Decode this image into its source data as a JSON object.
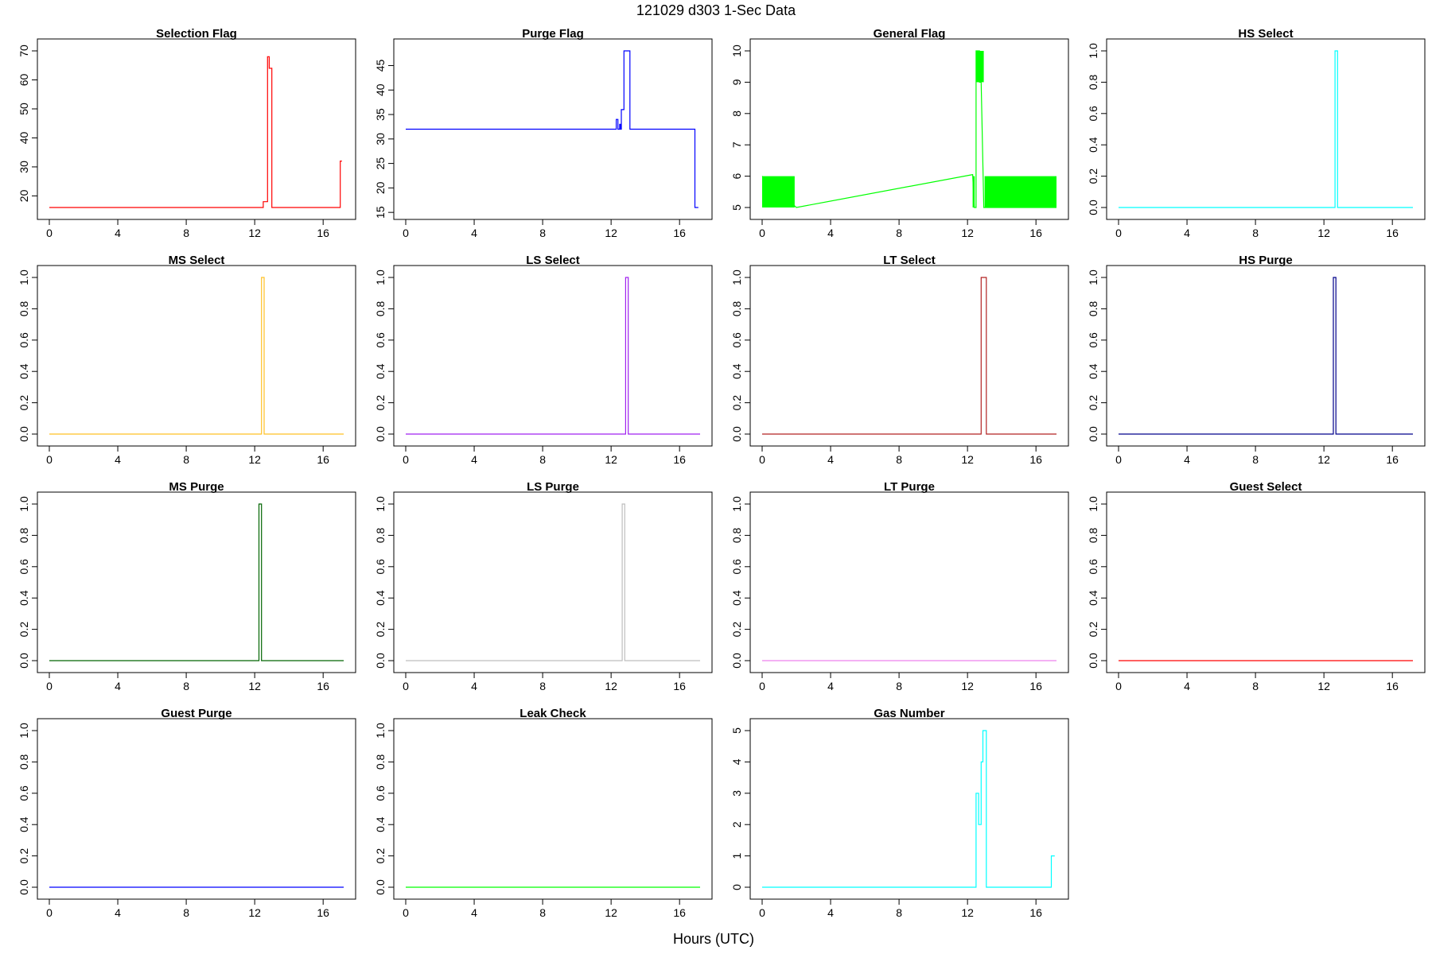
{
  "figure": {
    "title": "121029   d303   1-Sec Data",
    "xlabel": "Hours (UTC)"
  },
  "chart_data": [
    {
      "type": "line",
      "title": "Selection Flag",
      "color": "#FF0000",
      "xlim": [
        0,
        17.2
      ],
      "ylim": [
        16,
        70
      ],
      "xticks": [
        "0",
        "4",
        "8",
        "12",
        "16"
      ],
      "yticks": [
        "20",
        "30",
        "40",
        "50",
        "60",
        "70"
      ],
      "x": [
        0,
        12.5,
        12.5,
        12.75,
        12.75,
        12.85,
        12.85,
        13.0,
        13.0,
        13.1,
        13.1,
        17.0,
        17.0,
        17.1
      ],
      "y": [
        16,
        16,
        18,
        18,
        68,
        68,
        64,
        64,
        16,
        16,
        16,
        16,
        32,
        32
      ]
    },
    {
      "type": "line",
      "title": "Purge Flag",
      "color": "#0000FF",
      "xlim": [
        0,
        17.2
      ],
      "ylim": [
        16,
        48
      ],
      "xticks": [
        "0",
        "4",
        "8",
        "12",
        "16"
      ],
      "yticks": [
        "15",
        "20",
        "25",
        "30",
        "35",
        "40",
        "45"
      ],
      "x": [
        0,
        12.3,
        12.3,
        12.4,
        12.4,
        12.5,
        12.5,
        12.55,
        12.55,
        12.6,
        12.6,
        12.75,
        12.75,
        13.1,
        13.1,
        16.9,
        16.9,
        17.1
      ],
      "y": [
        32,
        32,
        34,
        34,
        32,
        32,
        33,
        33,
        32,
        32,
        36,
        36,
        48,
        48,
        32,
        32,
        16,
        16
      ]
    },
    {
      "type": "line",
      "title": "General Flag",
      "color": "#00FF00",
      "xlim": [
        0,
        17.2
      ],
      "ylim": [
        5,
        10
      ],
      "xticks": [
        "0",
        "4",
        "8",
        "12",
        "16"
      ],
      "yticks": [
        "5",
        "6",
        "7",
        "8",
        "9",
        "10"
      ],
      "x": [
        0,
        2.0,
        12.3,
        12.4,
        12.5,
        12.5,
        12.7,
        12.7,
        12.8,
        12.8,
        12.95,
        13.0,
        17.2
      ],
      "y": [
        6,
        5,
        6.05,
        5,
        5,
        10,
        10,
        9,
        9,
        9,
        5,
        5,
        5
      ],
      "bands": [
        {
          "x0": 0,
          "x1": 1.9,
          "y0": 5,
          "y1": 6
        },
        {
          "x0": 12.3,
          "x1": 12.42,
          "y0": 5,
          "y1": 6
        },
        {
          "x0": 12.5,
          "x1": 12.95,
          "y0": 9,
          "y1": 10
        },
        {
          "x0": 13.0,
          "x1": 17.2,
          "y0": 5,
          "y1": 6
        }
      ]
    },
    {
      "type": "line",
      "title": "HS Select",
      "color": "#00FFFF",
      "xlim": [
        0,
        17.2
      ],
      "ylim": [
        0,
        1
      ],
      "xticks": [
        "0",
        "4",
        "8",
        "12",
        "16"
      ],
      "yticks": [
        "0.0",
        "0.2",
        "0.4",
        "0.6",
        "0.8",
        "1.0"
      ],
      "x": [
        0,
        12.65,
        12.65,
        12.8,
        12.8,
        17.2
      ],
      "y": [
        0,
        0,
        1,
        1,
        0,
        0
      ]
    },
    {
      "type": "line",
      "title": "MS Select",
      "color": "#FFC125",
      "xlim": [
        0,
        17.2
      ],
      "ylim": [
        0,
        1
      ],
      "xticks": [
        "0",
        "4",
        "8",
        "12",
        "16"
      ],
      "yticks": [
        "0.0",
        "0.2",
        "0.4",
        "0.6",
        "0.8",
        "1.0"
      ],
      "x": [
        0,
        12.4,
        12.4,
        12.55,
        12.55,
        17.2
      ],
      "y": [
        0,
        0,
        1,
        1,
        0,
        0
      ]
    },
    {
      "type": "line",
      "title": "LS Select",
      "color": "#A020F0",
      "xlim": [
        0,
        17.2
      ],
      "ylim": [
        0,
        1
      ],
      "xticks": [
        "0",
        "4",
        "8",
        "12",
        "16"
      ],
      "yticks": [
        "0.0",
        "0.2",
        "0.4",
        "0.6",
        "0.8",
        "1.0"
      ],
      "x": [
        0,
        12.85,
        12.85,
        13.0,
        13.0,
        17.2
      ],
      "y": [
        0,
        0,
        1,
        1,
        0,
        0
      ]
    },
    {
      "type": "line",
      "title": "LT Select",
      "color": "#B22222",
      "xlim": [
        0,
        17.2
      ],
      "ylim": [
        0,
        1
      ],
      "xticks": [
        "0",
        "4",
        "8",
        "12",
        "16"
      ],
      "yticks": [
        "0.0",
        "0.2",
        "0.4",
        "0.6",
        "0.8",
        "1.0"
      ],
      "x": [
        0,
        12.8,
        12.8,
        13.1,
        13.1,
        17.2
      ],
      "y": [
        0,
        0,
        1,
        1,
        0,
        0
      ]
    },
    {
      "type": "line",
      "title": "HS Purge",
      "color": "#00008B",
      "xlim": [
        0,
        17.2
      ],
      "ylim": [
        0,
        1
      ],
      "xticks": [
        "0",
        "4",
        "8",
        "12",
        "16"
      ],
      "yticks": [
        "0.0",
        "0.2",
        "0.4",
        "0.6",
        "0.8",
        "1.0"
      ],
      "x": [
        0,
        12.55,
        12.55,
        12.7,
        12.7,
        17.2
      ],
      "y": [
        0,
        0,
        1,
        1,
        0,
        0
      ]
    },
    {
      "type": "line",
      "title": "MS Purge",
      "color": "#006400",
      "xlim": [
        0,
        17.2
      ],
      "ylim": [
        0,
        1
      ],
      "xticks": [
        "0",
        "4",
        "8",
        "12",
        "16"
      ],
      "yticks": [
        "0.0",
        "0.2",
        "0.4",
        "0.6",
        "0.8",
        "1.0"
      ],
      "x": [
        0,
        12.25,
        12.25,
        12.4,
        12.4,
        17.2
      ],
      "y": [
        0,
        0,
        1,
        1,
        0,
        0
      ]
    },
    {
      "type": "line",
      "title": "LS Purge",
      "color": "#BEBEBE",
      "xlim": [
        0,
        17.2
      ],
      "ylim": [
        0,
        1
      ],
      "xticks": [
        "0",
        "4",
        "8",
        "12",
        "16"
      ],
      "yticks": [
        "0.0",
        "0.2",
        "0.4",
        "0.6",
        "0.8",
        "1.0"
      ],
      "x": [
        0,
        12.65,
        12.65,
        12.8,
        12.8,
        17.2
      ],
      "y": [
        0,
        0,
        1,
        1,
        0,
        0
      ]
    },
    {
      "type": "line",
      "title": "LT Purge",
      "color": "#EE82EE",
      "xlim": [
        0,
        17.2
      ],
      "ylim": [
        0,
        1
      ],
      "xticks": [
        "0",
        "4",
        "8",
        "12",
        "16"
      ],
      "yticks": [
        "0.0",
        "0.2",
        "0.4",
        "0.6",
        "0.8",
        "1.0"
      ],
      "x": [
        0,
        17.2
      ],
      "y": [
        0,
        0
      ]
    },
    {
      "type": "line",
      "title": "Guest Select",
      "color": "#FF0000",
      "xlim": [
        0,
        17.2
      ],
      "ylim": [
        0,
        1
      ],
      "xticks": [
        "0",
        "4",
        "8",
        "12",
        "16"
      ],
      "yticks": [
        "0.0",
        "0.2",
        "0.4",
        "0.6",
        "0.8",
        "1.0"
      ],
      "x": [
        0,
        17.2
      ],
      "y": [
        0,
        0
      ]
    },
    {
      "type": "line",
      "title": "Guest Purge",
      "color": "#0000FF",
      "xlim": [
        0,
        17.2
      ],
      "ylim": [
        0,
        1
      ],
      "xticks": [
        "0",
        "4",
        "8",
        "12",
        "16"
      ],
      "yticks": [
        "0.0",
        "0.2",
        "0.4",
        "0.6",
        "0.8",
        "1.0"
      ],
      "x": [
        0,
        17.2
      ],
      "y": [
        0,
        0
      ]
    },
    {
      "type": "line",
      "title": "Leak Check",
      "color": "#00FF00",
      "xlim": [
        0,
        17.2
      ],
      "ylim": [
        0,
        1
      ],
      "xticks": [
        "0",
        "4",
        "8",
        "12",
        "16"
      ],
      "yticks": [
        "0.0",
        "0.2",
        "0.4",
        "0.6",
        "0.8",
        "1.0"
      ],
      "x": [
        0,
        17.2
      ],
      "y": [
        0,
        0
      ]
    },
    {
      "type": "line",
      "title": "Gas Number",
      "color": "#00FFFF",
      "xlim": [
        0,
        17.2
      ],
      "ylim": [
        0,
        5
      ],
      "xticks": [
        "0",
        "4",
        "8",
        "12",
        "16"
      ],
      "yticks": [
        "0",
        "1",
        "2",
        "3",
        "4",
        "5"
      ],
      "x": [
        0,
        12.5,
        12.5,
        12.65,
        12.65,
        12.8,
        12.8,
        12.9,
        12.9,
        13.1,
        13.1,
        16.9,
        16.9,
        17.1
      ],
      "y": [
        0,
        0,
        3,
        3,
        2,
        2,
        4,
        4,
        5,
        5,
        0,
        0,
        1,
        1
      ]
    }
  ]
}
